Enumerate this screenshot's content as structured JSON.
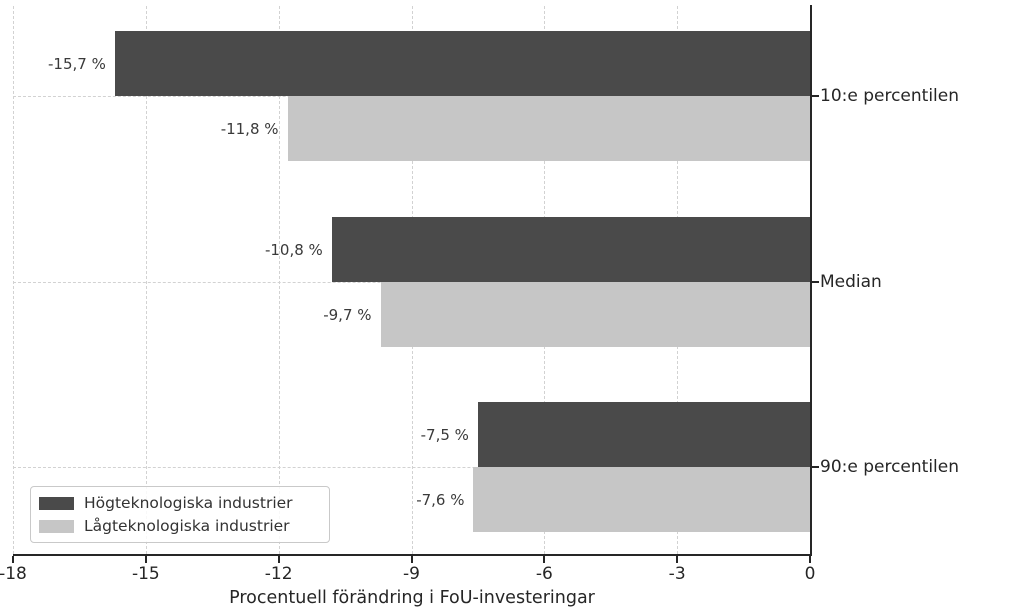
{
  "chart_data": {
    "type": "bar",
    "orientation": "horizontal",
    "title": "",
    "xlabel": "Procentuell förändring i FoU-investeringar",
    "ylabel": "",
    "xlim": [
      -18,
      0
    ],
    "xticks": [
      -18,
      -15,
      -12,
      -9,
      -6,
      -3,
      0
    ],
    "xtick_labels": [
      "-18",
      "-15",
      "-12",
      "-9",
      "-6",
      "-3",
      "0"
    ],
    "categories": [
      "10:e percentilen",
      "Median",
      "90:e percentilen"
    ],
    "series": [
      {
        "name": "Högteknologiska industrier",
        "color": "#4a4a4a",
        "values": [
          -15.7,
          -10.8,
          -7.5
        ],
        "value_labels": [
          "-15,7 %",
          "-10,8 %",
          "-7,5 %"
        ]
      },
      {
        "name": "Lågteknologiska industrier",
        "color": "#c6c6c6",
        "values": [
          -11.8,
          -9.7,
          -7.6
        ],
        "value_labels": [
          "-11,8 %",
          "-9,7 %",
          "-7,6 %"
        ]
      }
    ],
    "grid": "dashed",
    "grid_color": "#d2d2d2",
    "axis_color": "#262626",
    "text_color": "#262626",
    "legend_position": "lower left"
  }
}
